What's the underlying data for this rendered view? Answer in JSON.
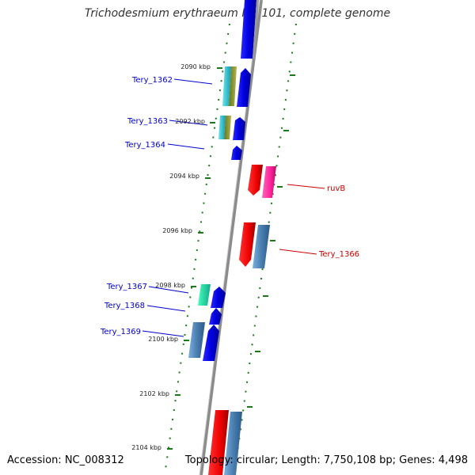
{
  "title": "Trichodesmium erythraeum IMS101, complete genome",
  "footer": {
    "accession": "Accession: NC_008312",
    "summary": "Topology: circular; Length: 7,750,108 bp; Genes: 4,498"
  },
  "kbp_labels": [
    "2090 kbp",
    "2092 kbp",
    "2094 kbp",
    "2096 kbp",
    "2098 kbp",
    "2100 kbp",
    "2102 kbp",
    "2104 kbp"
  ],
  "genes_left": [
    "Tery_1362",
    "Tery_1363",
    "Tery_1364",
    "Tery_1367",
    "Tery_1368",
    "Tery_1369"
  ],
  "genes_right": [
    "ruvB",
    "Tery_1366"
  ],
  "colors": {
    "left_label": "#0000cc",
    "right_label": "#cc0000",
    "tick": "#1a7a1a",
    "backbone": "#8c8c8c",
    "blue": "#0a0adf",
    "red": "#ee1111",
    "magenta": "#ff3399",
    "steel": "#4a7fb0",
    "cyan": "#22bbcc",
    "olive": "#8a8a30",
    "teal": "#22ddaa"
  }
}
